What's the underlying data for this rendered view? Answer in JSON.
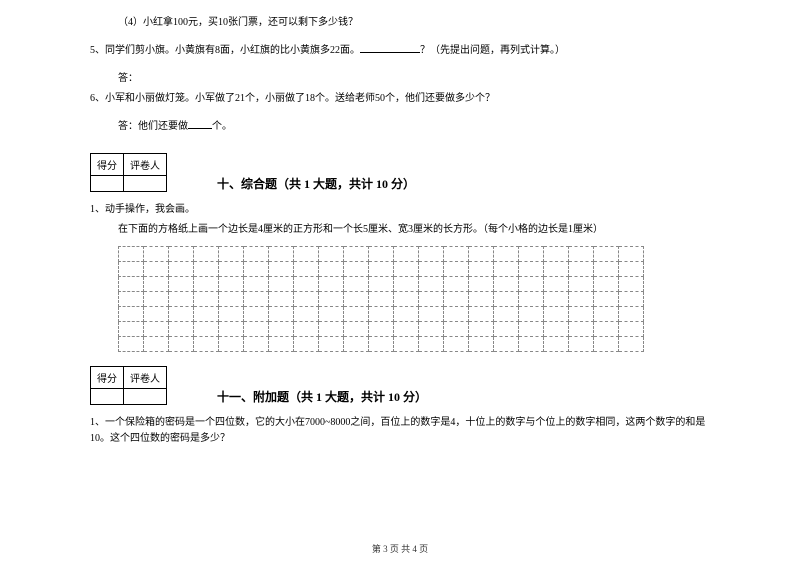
{
  "q4": {
    "text": "（4）小红拿100元，买10张门票，还可以剩下多少钱？"
  },
  "q5": {
    "text_before": "5、同学们剪小旗。小黄旗有8面，小红旗的比小黄旗多22面。",
    "text_after": "？（先提出问题，再列式计算。）",
    "answer_label": "答："
  },
  "q6": {
    "text": "6、小军和小丽做灯笼。小军做了21个，小丽做了18个。送给老师50个，他们还要做多少个？",
    "answer_before": "答：他们还要做",
    "answer_after": "个。"
  },
  "score_table": {
    "h1": "得分",
    "h2": "评卷人"
  },
  "section10": {
    "title": "十、综合题（共 1 大题，共计 10 分）",
    "q1_line1": "1、动手操作，我会画。",
    "q1_line2": "在下面的方格纸上画一个边长是4厘米的正方形和一个长5厘米、宽3厘米的长方形。（每个小格的边长是1厘米）"
  },
  "section11": {
    "title": "十一、附加题（共 1 大题，共计 10 分）",
    "q1": "1、一个保险箱的密码是一个四位数，它的大小在7000~8000之间，百位上的数字是4，十位上的数字与个位上的数字相同，这两个数字的和是10。这个四位数的密码是多少？"
  },
  "footer": {
    "text": "第 3 页  共 4 页"
  },
  "grid": {
    "rows": 7,
    "cols": 21
  }
}
